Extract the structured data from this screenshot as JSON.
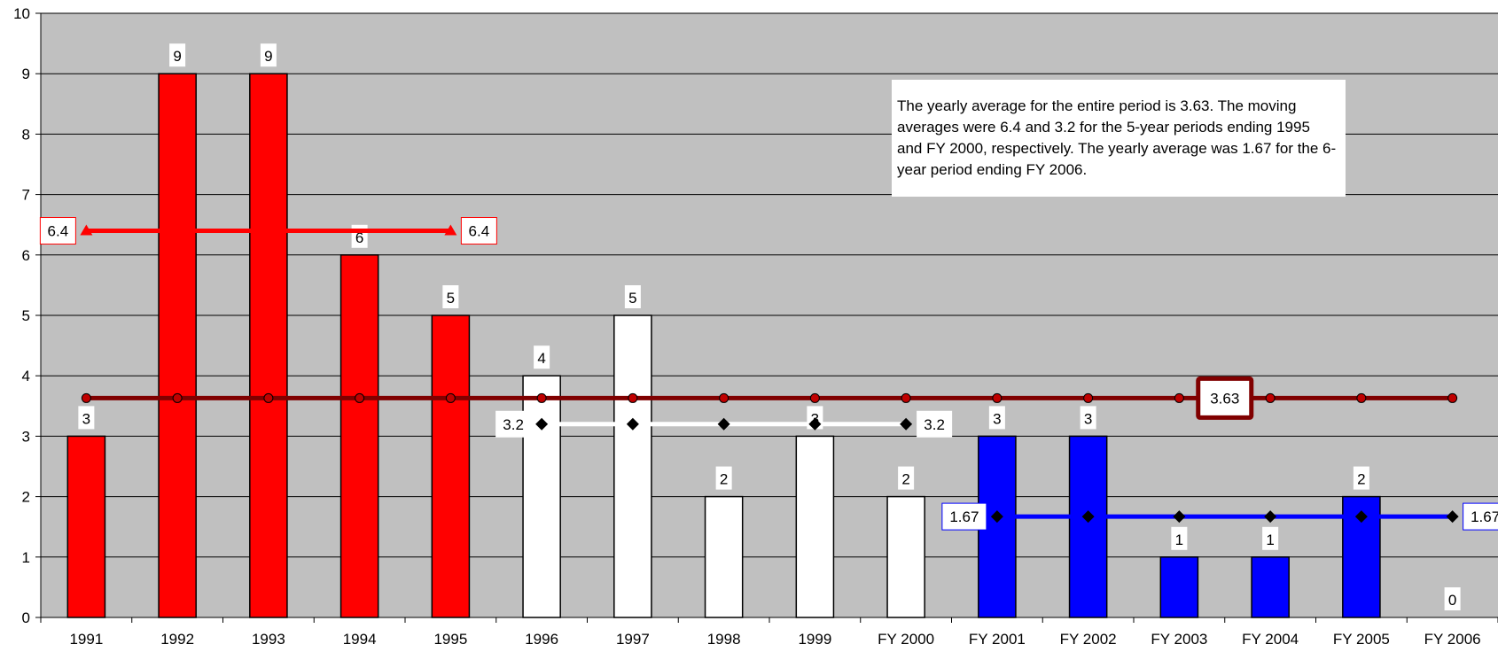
{
  "chart_data": {
    "type": "bar",
    "categories": [
      "1991",
      "1992",
      "1993",
      "1994",
      "1995",
      "1996",
      "1997",
      "1998",
      "1999",
      "FY 2000",
      "FY 2001",
      "FY 2002",
      "FY 2003",
      "FY 2004",
      "FY 2005",
      "FY 2006"
    ],
    "values": [
      3,
      9,
      9,
      6,
      5,
      4,
      5,
      2,
      3,
      2,
      3,
      3,
      1,
      1,
      2,
      0
    ],
    "bar_colors": [
      "#ff0000",
      "#ff0000",
      "#ff0000",
      "#ff0000",
      "#ff0000",
      "#ffffff",
      "#ffffff",
      "#ffffff",
      "#ffffff",
      "#ffffff",
      "#0000ff",
      "#0000ff",
      "#0000ff",
      "#0000ff",
      "#0000ff",
      "#0000ff"
    ],
    "ylim": [
      0,
      10
    ],
    "yticks": [
      0,
      1,
      2,
      3,
      4,
      5,
      6,
      7,
      8,
      9,
      10
    ],
    "grid": true,
    "plot_background": "#c0c0c0",
    "overall_average": {
      "value": 3.63,
      "label": "3.63",
      "color": "#800000",
      "from_index": 0,
      "to_index": 15,
      "marker": "circle"
    },
    "moving_averages": [
      {
        "value": 6.4,
        "label": "6.4",
        "color": "#ff0000",
        "from_index": 0,
        "to_index": 4,
        "marker": "triangle"
      },
      {
        "value": 3.2,
        "label": "3.2",
        "color": "#ffffff",
        "from_index": 5,
        "to_index": 9,
        "marker": "diamond"
      },
      {
        "value": 1.67,
        "label": "1.67",
        "color": "#0000ff",
        "from_index": 10,
        "to_index": 15,
        "marker": "diamond"
      }
    ],
    "annotation": "The yearly average for the entire period is 3.63.  The moving averages were 6.4 and 3.2 for the 5-year periods ending 1995 and FY 2000, respectively.  The yearly average was 1.67 for the 6-year period ending FY 2006."
  }
}
